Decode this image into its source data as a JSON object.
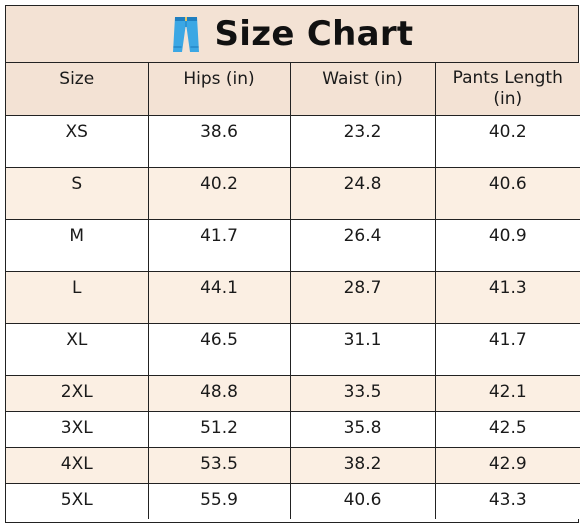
{
  "title": "Size Chart",
  "icon": "jeans-icon",
  "colors": {
    "header_bg": "#f3e2d4",
    "stripe_bg": "#fbefe3",
    "icon_blue": "#3ba7e4",
    "border": "#222222"
  },
  "columns": [
    "Size",
    "Hips (in)",
    "Waist (in)",
    "Pants Length (in)"
  ],
  "rows": [
    {
      "size": "XS",
      "hips": "38.6",
      "waist": "23.2",
      "length": "40.2"
    },
    {
      "size": "S",
      "hips": "40.2",
      "waist": "24.8",
      "length": "40.6"
    },
    {
      "size": "M",
      "hips": "41.7",
      "waist": "26.4",
      "length": "40.9"
    },
    {
      "size": "L",
      "hips": "44.1",
      "waist": "28.7",
      "length": "41.3"
    },
    {
      "size": "XL",
      "hips": "46.5",
      "waist": "31.1",
      "length": "41.7"
    },
    {
      "size": "2XL",
      "hips": "48.8",
      "waist": "33.5",
      "length": "42.1"
    },
    {
      "size": "3XL",
      "hips": "51.2",
      "waist": "35.8",
      "length": "42.5"
    },
    {
      "size": "4XL",
      "hips": "53.5",
      "waist": "38.2",
      "length": "42.9"
    },
    {
      "size": "5XL",
      "hips": "55.9",
      "waist": "40.6",
      "length": "43.3"
    }
  ]
}
